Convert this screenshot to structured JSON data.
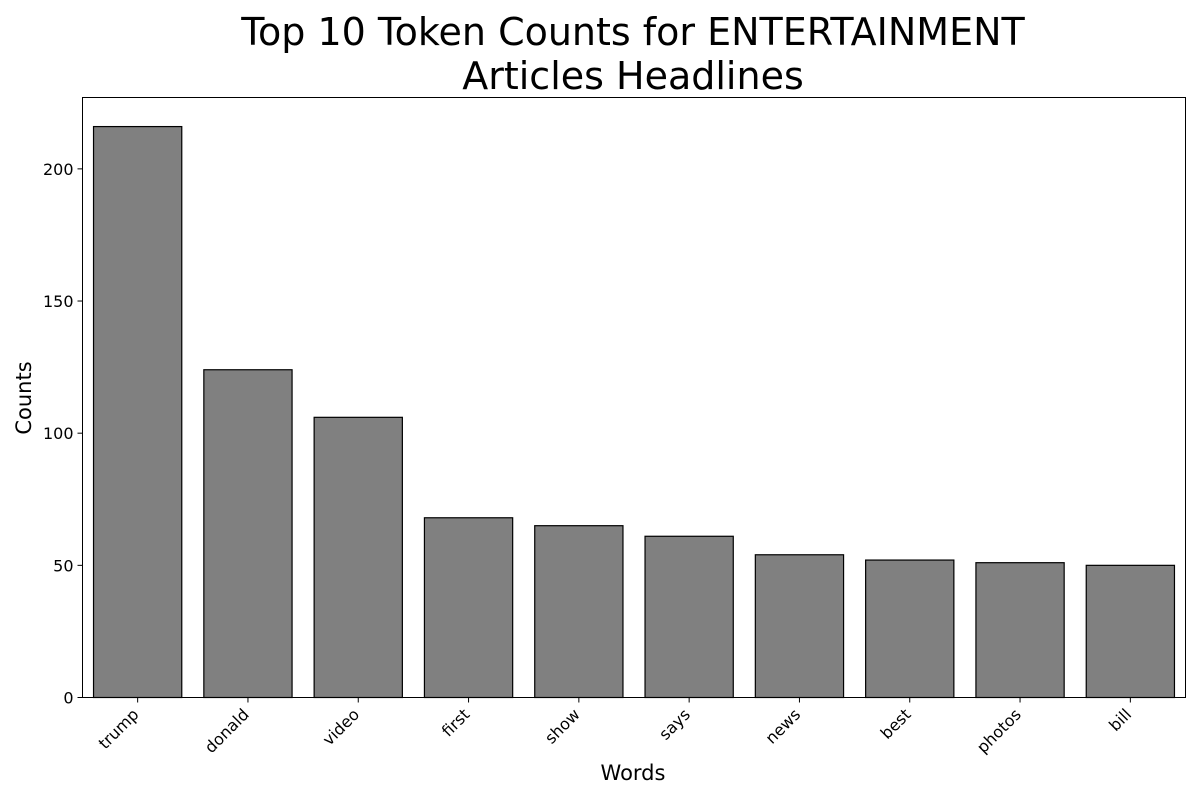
{
  "chart_data": {
    "type": "bar",
    "title_lines": [
      "Top 10 Token Counts for ENTERTAINMENT",
      "Articles Headlines"
    ],
    "xlabel": "Words",
    "ylabel": "Counts",
    "categories": [
      "trump",
      "donald",
      "video",
      "first",
      "show",
      "says",
      "news",
      "best",
      "photos",
      "bill"
    ],
    "values": [
      216,
      124,
      106,
      68,
      65,
      61,
      54,
      52,
      51,
      50
    ],
    "ylim": [
      0,
      227
    ],
    "yticks": [
      0,
      50,
      100,
      150,
      200
    ],
    "bar_color": "#808080",
    "edge_color": "#000000",
    "grid": false,
    "legend": "none"
  }
}
